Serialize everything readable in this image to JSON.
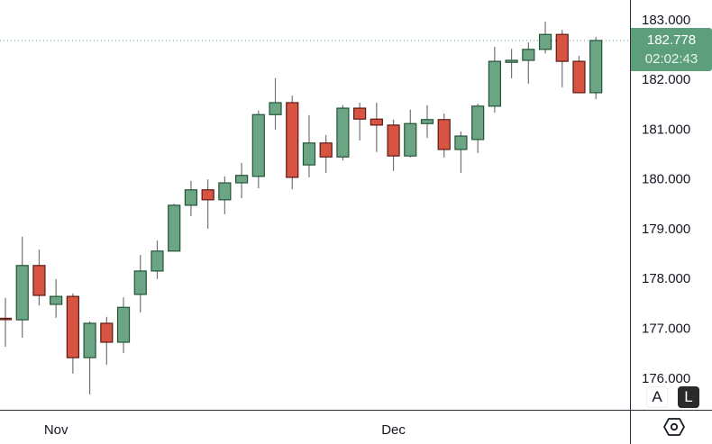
{
  "chart_data": {
    "type": "candlestick",
    "title": "",
    "ylim": [
      175.5,
      183.3
    ],
    "yticks": [
      "176.000",
      "177.000",
      "178.000",
      "179.000",
      "180.000",
      "181.000",
      "182.000",
      "183.000"
    ],
    "ytick_values": [
      176,
      177,
      178,
      179,
      180,
      181,
      182,
      183
    ],
    "xticks": [
      {
        "label": "Nov",
        "index": 3
      },
      {
        "label": "Dec",
        "index": 23
      }
    ],
    "grid": false,
    "colors": {
      "up": "#6ba583",
      "down": "#d75442",
      "up_border": "#225437",
      "down_border": "#5b1a13",
      "wick": "#737375"
    },
    "candles": [
      [
        177.2,
        177.61,
        176.63,
        177.18
      ],
      [
        177.17,
        178.84,
        176.81,
        178.26
      ],
      [
        178.26,
        178.58,
        177.46,
        177.66
      ],
      [
        177.48,
        177.99,
        177.21,
        177.64
      ],
      [
        177.64,
        177.7,
        176.09,
        176.41
      ],
      [
        176.41,
        177.14,
        175.67,
        177.1
      ],
      [
        177.1,
        177.23,
        176.27,
        176.72
      ],
      [
        176.72,
        177.62,
        176.5,
        177.42
      ],
      [
        177.68,
        178.47,
        177.32,
        178.15
      ],
      [
        178.15,
        178.76,
        177.99,
        178.55
      ],
      [
        178.55,
        179.5,
        178.55,
        179.47
      ],
      [
        179.47,
        179.96,
        179.25,
        179.78
      ],
      [
        179.78,
        179.99,
        179.0,
        179.58
      ],
      [
        179.58,
        180.05,
        179.29,
        179.92
      ],
      [
        179.92,
        180.32,
        179.61,
        180.07
      ],
      [
        180.05,
        181.37,
        179.81,
        181.29
      ],
      [
        181.29,
        182.02,
        180.99,
        181.53
      ],
      [
        181.53,
        181.67,
        179.79,
        180.03
      ],
      [
        180.28,
        181.28,
        180.03,
        180.72
      ],
      [
        180.72,
        180.88,
        180.12,
        180.44
      ],
      [
        180.44,
        181.48,
        180.37,
        181.42
      ],
      [
        181.42,
        181.53,
        180.77,
        181.2
      ],
      [
        181.2,
        181.53,
        180.54,
        181.08
      ],
      [
        181.08,
        181.19,
        180.16,
        180.46
      ],
      [
        180.46,
        181.39,
        180.43,
        181.11
      ],
      [
        181.11,
        181.48,
        180.82,
        181.19
      ],
      [
        181.19,
        181.31,
        180.43,
        180.59
      ],
      [
        180.59,
        180.95,
        180.12,
        180.86
      ],
      [
        180.79,
        181.51,
        180.52,
        181.46
      ],
      [
        181.46,
        182.65,
        181.33,
        182.36
      ],
      [
        182.34,
        182.61,
        182.02,
        182.38
      ],
      [
        182.38,
        182.74,
        181.91,
        182.6
      ],
      [
        182.6,
        183.16,
        182.52,
        182.9
      ],
      [
        182.9,
        182.99,
        181.84,
        182.36
      ],
      [
        182.36,
        182.47,
        181.73,
        181.73
      ],
      [
        181.73,
        182.85,
        181.6,
        182.778
      ]
    ],
    "last_price": 182.778
  },
  "price_label": {
    "price": "182.778",
    "countdown": "02:02:43"
  },
  "buttons": {
    "auto": "A",
    "log": "L"
  },
  "icons": {
    "settings": "hexagon-gear-icon"
  }
}
